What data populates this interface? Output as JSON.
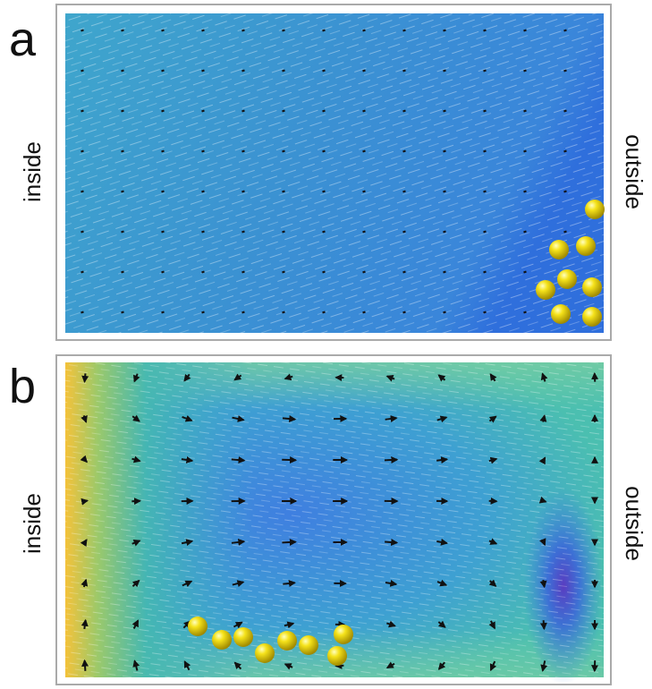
{
  "panels": [
    {
      "label": "a",
      "left": "inside",
      "right": "outside"
    },
    {
      "label": "b",
      "left": "inside",
      "right": "outside"
    }
  ]
}
